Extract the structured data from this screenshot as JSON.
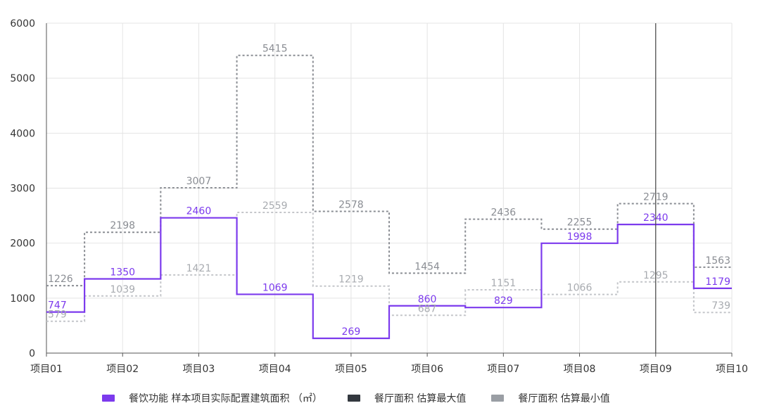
{
  "chart_data": {
    "type": "line",
    "step": true,
    "categories": [
      "项目01",
      "项目02",
      "项目03",
      "项目04",
      "项目05",
      "项目06",
      "项目07",
      "项目08",
      "项目09",
      "项目10"
    ],
    "ylim": [
      0,
      6000
    ],
    "yticks": [
      0,
      1000,
      2000,
      3000,
      4000,
      5000,
      6000
    ],
    "grid": true,
    "legend_position": "bottom",
    "series": [
      {
        "name": "餐饮功能 样本项目实际配置建筑面积 （㎡）",
        "color": "#7c3aed",
        "style": "solid",
        "values": [
          747,
          1350,
          2460,
          1069,
          269,
          860,
          829,
          1998,
          2340,
          1179
        ]
      },
      {
        "name": "餐厅面积 估算最大值",
        "color": "#8a8d93",
        "style": "dotted",
        "values": [
          1226,
          2198,
          3007,
          5415,
          2578,
          1454,
          2436,
          2255,
          2719,
          1563
        ]
      },
      {
        "name": "餐厅面积 估算最小值",
        "color": "#c4c6ca",
        "style": "dotted",
        "values": [
          579,
          1039,
          1421,
          2559,
          1219,
          687,
          1151,
          1066,
          1295,
          739
        ]
      }
    ],
    "legend_swatches": [
      "#7c3aed",
      "#33383f",
      "#9a9ea4"
    ],
    "vertical_marker_category": "项目09"
  }
}
